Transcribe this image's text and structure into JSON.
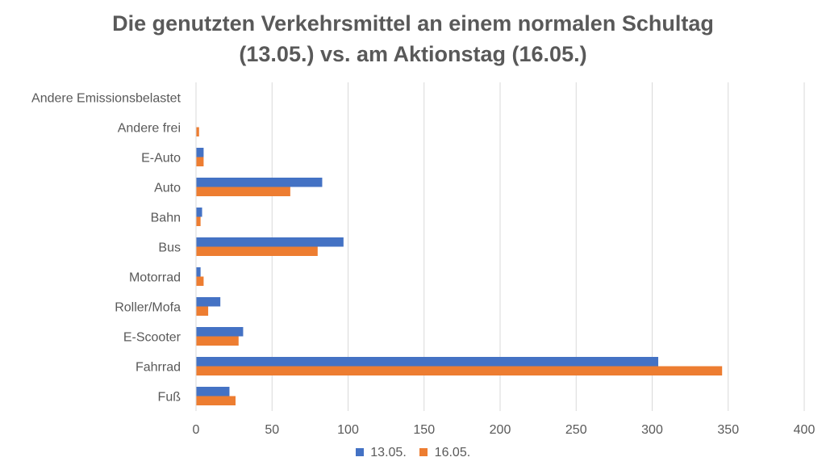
{
  "colors": {
    "series_1": "#4472C4",
    "series_2": "#ED7D31",
    "grid": "#D9D9D9",
    "text": "#595959"
  },
  "chart_data": {
    "type": "bar",
    "orientation": "horizontal",
    "title_line_1": "Die genutzten Verkehrsmittel an einem normalen Schultag",
    "title_line_2": "(13.05.) vs. am Aktionstag (16.05.)",
    "categories": [
      "Andere Emissionsbelastet",
      "Andere frei",
      "E-Auto",
      "Auto",
      "Bahn",
      "Bus",
      "Motorrad",
      "Roller/Mofa",
      "E-Scooter",
      "Fahrrad",
      "Fuß"
    ],
    "series": [
      {
        "name": "13.05.",
        "values": [
          0,
          0,
          5,
          83,
          4,
          97,
          3,
          16,
          31,
          304,
          22
        ]
      },
      {
        "name": "16.05.",
        "values": [
          0,
          2,
          5,
          62,
          3,
          80,
          5,
          8,
          28,
          346,
          26
        ]
      }
    ],
    "xlim": [
      0,
      400
    ],
    "xticks": [
      "0",
      "50",
      "100",
      "150",
      "200",
      "250",
      "300",
      "350",
      "400"
    ],
    "xlabel": "",
    "ylabel": "",
    "grid": true,
    "legend": "bottom-center"
  }
}
